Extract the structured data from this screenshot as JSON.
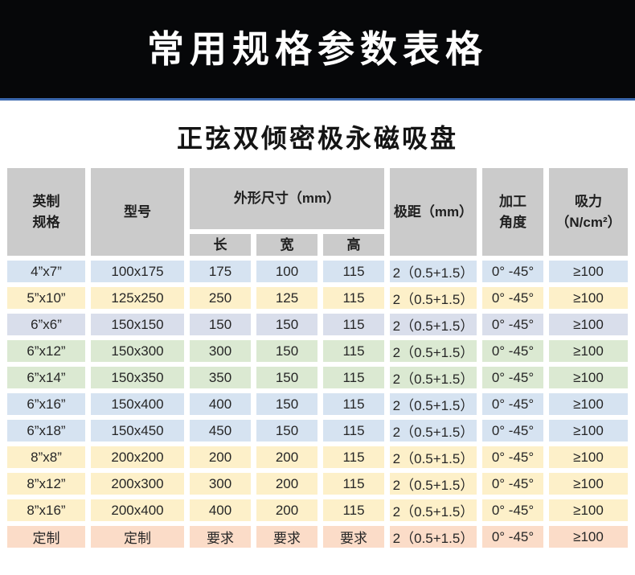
{
  "banner": {
    "title": "常用规格参数表格"
  },
  "subtitle": "正弦双倾密极永磁吸盘",
  "colors": {
    "banner_bg": "#060709",
    "divider": "#3a67ad",
    "header_bg": "#cbcbcb",
    "text": "#262626",
    "row_blue": "#d6e3f1",
    "row_blue2": "#d9deeb",
    "row_yellow": "#fdf0c9",
    "row_green": "#dbe9d2",
    "row_pink": "#fbdcc8"
  },
  "table": {
    "headers": {
      "imperial": {
        "line1": "英制",
        "line2": "规格"
      },
      "model": "型号",
      "dimensions": "外形尺寸（mm）",
      "sub": {
        "length": "长",
        "width": "宽",
        "height": "高"
      },
      "pole_pitch": "极距（mm）",
      "angle": {
        "line1": "加工",
        "line2": "角度"
      },
      "suction": {
        "line1": "吸力",
        "line2": "（N/cm²）"
      }
    },
    "row_colors": {
      "blue": "#d6e3f1",
      "blue2": "#d9deeb",
      "yellow": "#fdf0c9",
      "green": "#dbe9d2",
      "pink": "#fbdcc8"
    },
    "rows": [
      {
        "color": "blue",
        "cells": [
          "4”x7”",
          "100x175",
          "175",
          "100",
          "115",
          "2（0.5+1.5）",
          "0° -45°",
          "≥100"
        ]
      },
      {
        "color": "yellow",
        "cells": [
          "5”x10”",
          "125x250",
          "250",
          "125",
          "115",
          "2（0.5+1.5）",
          "0° -45°",
          "≥100"
        ]
      },
      {
        "color": "blue2",
        "cells": [
          "6”x6”",
          "150x150",
          "150",
          "150",
          "115",
          "2（0.5+1.5）",
          "0° -45°",
          "≥100"
        ]
      },
      {
        "color": "green",
        "cells": [
          "6”x12”",
          "150x300",
          "300",
          "150",
          "115",
          "2（0.5+1.5）",
          "0° -45°",
          "≥100"
        ]
      },
      {
        "color": "green",
        "cells": [
          "6”x14”",
          "150x350",
          "350",
          "150",
          "115",
          "2（0.5+1.5）",
          "0° -45°",
          "≥100"
        ]
      },
      {
        "color": "blue",
        "cells": [
          "6”x16”",
          "150x400",
          "400",
          "150",
          "115",
          "2（0.5+1.5）",
          "0° -45°",
          "≥100"
        ]
      },
      {
        "color": "blue",
        "cells": [
          "6”x18”",
          "150x450",
          "450",
          "150",
          "115",
          "2（0.5+1.5）",
          "0° -45°",
          "≥100"
        ]
      },
      {
        "color": "yellow",
        "cells": [
          "8”x8”",
          "200x200",
          "200",
          "200",
          "115",
          "2（0.5+1.5）",
          "0° -45°",
          "≥100"
        ]
      },
      {
        "color": "yellow",
        "cells": [
          "8”x12”",
          "200x300",
          "300",
          "200",
          "115",
          "2（0.5+1.5）",
          "0° -45°",
          "≥100"
        ]
      },
      {
        "color": "yellow",
        "cells": [
          "8”x16”",
          "200x400",
          "400",
          "200",
          "115",
          "2（0.5+1.5）",
          "0° -45°",
          "≥100"
        ]
      },
      {
        "color": "pink",
        "cells": [
          "定制",
          "定制",
          "要求",
          "要求",
          "要求",
          "2（0.5+1.5）",
          "0° -45°",
          "≥100"
        ]
      }
    ]
  }
}
